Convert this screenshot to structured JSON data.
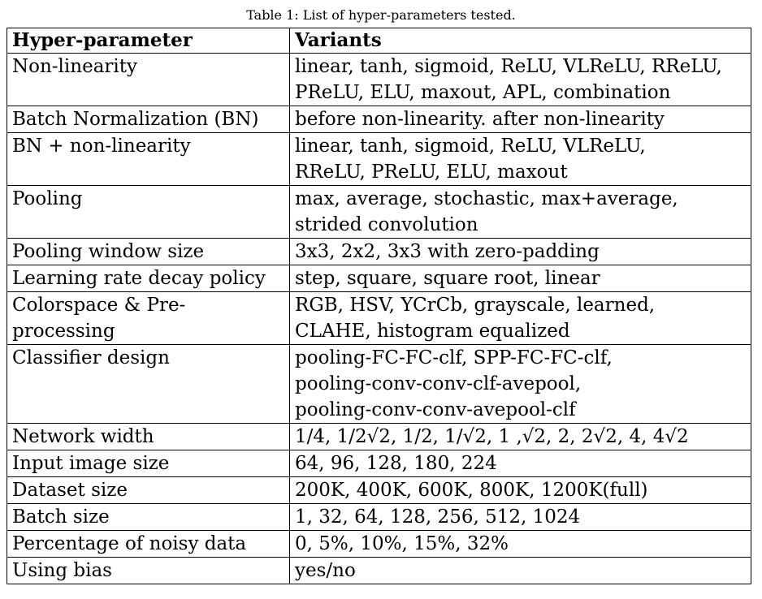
{
  "caption": "Table 1: List of hyper-parameters tested.",
  "table": {
    "headers": [
      "Hyper-parameter",
      "Variants"
    ],
    "rows": [
      {
        "name": "Non-linearity",
        "variants": "linear, tanh, sigmoid, ReLU, VLReLU, RReLU,\nPReLU, ELU, maxout, APL, combination"
      },
      {
        "name": "Batch Normalization (BN)",
        "variants": "before non-linearity. after non-linearity"
      },
      {
        "name": "BN + non-linearity",
        "variants": "linear, tanh, sigmoid, ReLU, VLReLU,\nRReLU, PReLU, ELU, maxout"
      },
      {
        "name": "Pooling",
        "variants": "max, average, stochastic, max+average,\nstrided convolution"
      },
      {
        "name": "Pooling window size",
        "variants": "3x3, 2x2, 3x3 with zero-padding"
      },
      {
        "name": "Learning rate decay policy",
        "variants": "step, square, square root, linear"
      },
      {
        "name": "Colorspace & Pre-processing",
        "variants": "RGB, HSV, YCrCb, grayscale, learned,\nCLAHE, histogram equalized"
      },
      {
        "name": "Classifier design",
        "variants": "pooling-FC-FC-clf, SPP-FC-FC-clf,\npooling-conv-conv-clf-avepool,\npooling-conv-conv-avepool-clf"
      },
      {
        "name": "Network width",
        "variants": "1/4, 1/2√2, 1/2, 1/√2, 1 ,√2, 2, 2√2, 4, 4√2"
      },
      {
        "name": "Input image size",
        "variants": "64, 96, 128, 180, 224"
      },
      {
        "name": "Dataset size",
        "variants": "200K, 400K, 600K, 800K, 1200K(full)"
      },
      {
        "name": "Batch size",
        "variants": "1, 32, 64, 128, 256, 512, 1024"
      },
      {
        "name": "Percentage of noisy data",
        "variants": "0, 5%, 10%, 15%, 32%"
      },
      {
        "name": "Using bias",
        "variants": "yes/no"
      }
    ]
  }
}
